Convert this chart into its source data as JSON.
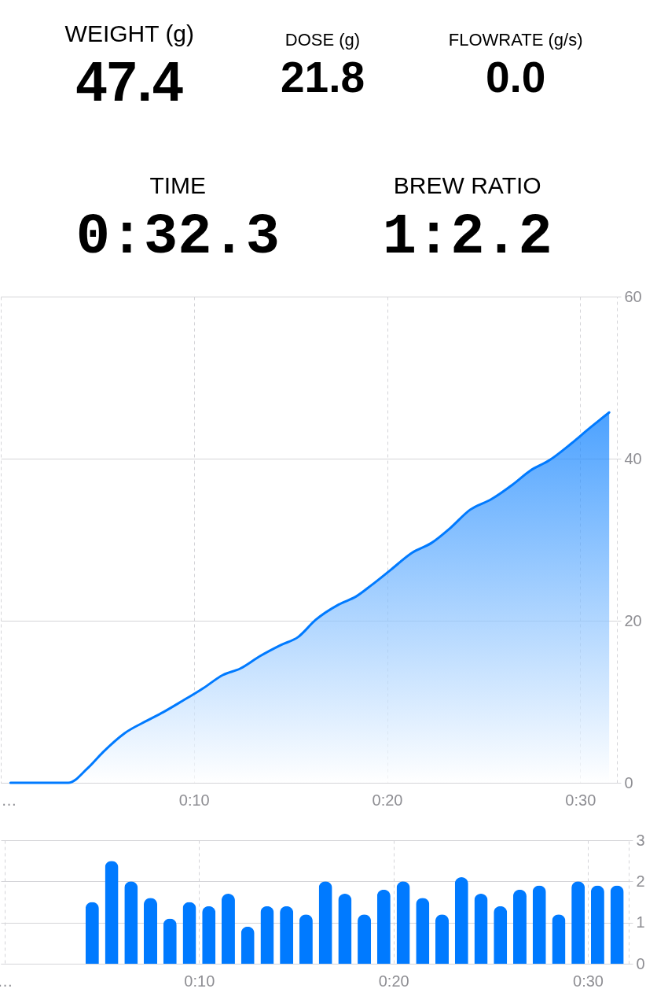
{
  "chart_data": [
    {
      "type": "other",
      "annotations": [
        "WEIGHT (g)",
        "47.4",
        "DOSE (g)",
        "21.8",
        "FLOWRATE (g/s)",
        "0.0",
        "TIME",
        "0:32.3",
        "BREW RATIO",
        "1:2.2"
      ]
    },
    {
      "type": "area",
      "x": [
        0.5,
        3.5,
        4.5,
        5.3,
        6.4,
        7.6,
        8.4,
        9.4,
        10.5,
        11.5,
        12.4,
        13.4,
        14.5,
        15.4,
        16.3,
        17.5,
        18.4,
        19.2,
        20.2,
        21.3,
        22.3,
        23.3,
        24.3,
        25.4,
        26.5,
        27.4,
        28.4,
        29.5,
        30.5,
        31.5
      ],
      "values": [
        0,
        0,
        1.8,
        3.8,
        6.1,
        7.7,
        8.7,
        10.1,
        11.7,
        13.3,
        14.1,
        15.6,
        17.0,
        18.0,
        20.1,
        22.0,
        23.0,
        24.4,
        26.3,
        28.4,
        29.6,
        31.5,
        33.7,
        35.0,
        36.8,
        38.5,
        39.8,
        41.8,
        43.8,
        45.7
      ],
      "color": "#007aff",
      "xlim": [
        0,
        31.9
      ],
      "xticks": [
        {
          "value": 0,
          "label": "…"
        },
        {
          "value": 10,
          "label": "0:10"
        },
        {
          "value": 20,
          "label": "0:20"
        },
        {
          "value": 30,
          "label": "0:30"
        }
      ],
      "ylim": [
        0,
        60
      ],
      "yticks": [
        0,
        20,
        40,
        60
      ],
      "grid": true
    },
    {
      "type": "bar",
      "x": [
        4.5,
        5.5,
        6.5,
        7.5,
        8.5,
        9.5,
        10.5,
        11.5,
        12.5,
        13.5,
        14.5,
        15.5,
        16.5,
        17.5,
        18.5,
        19.5,
        20.5,
        21.5,
        22.5,
        23.5,
        24.5,
        25.5,
        26.5,
        27.5,
        28.5,
        29.5,
        30.5,
        31.5
      ],
      "values": [
        1.5,
        2.5,
        2.0,
        1.6,
        1.1,
        1.5,
        1.4,
        1.7,
        0.9,
        1.4,
        1.4,
        1.2,
        2.0,
        1.7,
        1.2,
        1.8,
        2.0,
        1.6,
        1.2,
        2.1,
        1.7,
        1.4,
        1.8,
        1.9,
        1.2,
        2.0,
        1.9,
        1.9
      ],
      "color": "#007aff",
      "xlim": [
        0,
        31.9
      ],
      "xticks": [
        {
          "value": 0,
          "label": "…"
        },
        {
          "value": 10,
          "label": "0:10"
        },
        {
          "value": 20,
          "label": "0:20"
        },
        {
          "value": 30,
          "label": "0:30"
        }
      ],
      "ylim": [
        0,
        3
      ],
      "yticks": [
        0,
        1,
        2,
        3
      ],
      "grid": true
    }
  ]
}
